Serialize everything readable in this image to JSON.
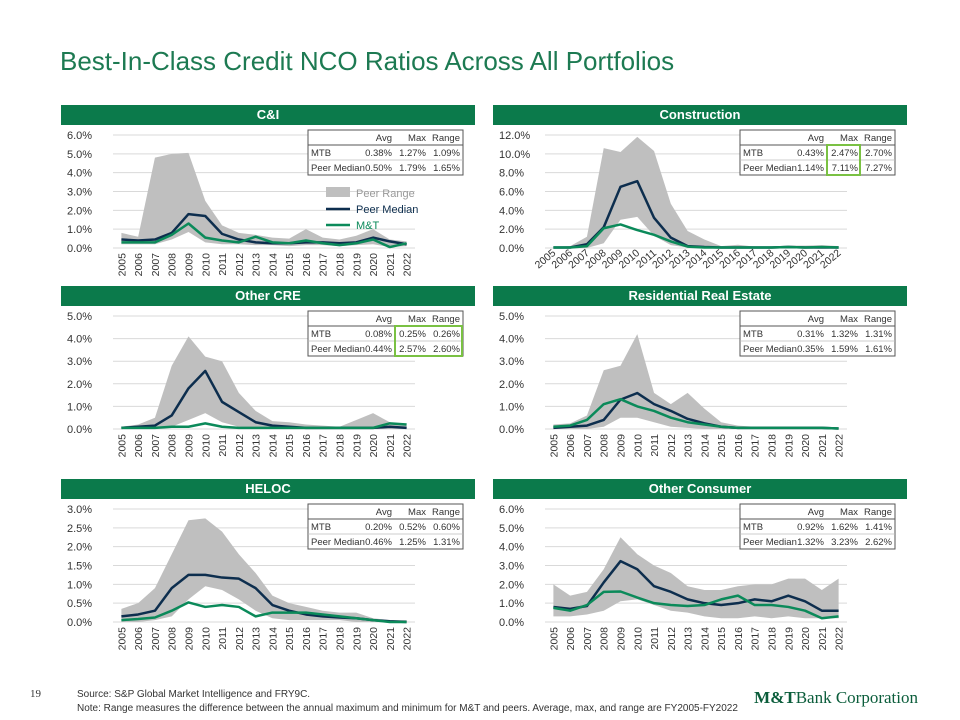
{
  "page": {
    "title": "Best-In-Class Credit NCO Ratios Across All Portfolios",
    "page_number": "19",
    "source": "Source: S&P Global Market Intelligence and FRY9C.",
    "note": "Note: Range measures the difference between the annual maximum and minimum for M&T and peers. Average, max, and range are FY2005-FY2022",
    "logo_mt": "M&T",
    "logo_rest": "Bank Corporation"
  },
  "colors": {
    "header": "#0b7a4b",
    "peer_range": "#bfbfbf",
    "peer_median": "#0d2e4e",
    "mt": "#0b8a5a",
    "highlight": "#7ac143"
  },
  "legend": [
    "Peer Range",
    "Peer Median",
    "M&T"
  ],
  "table_headers": [
    "",
    "Avg",
    "Max",
    "Range"
  ],
  "chart_data": [
    {
      "type": "line",
      "title": "C&I",
      "x": [
        "2005",
        "2006",
        "2007",
        "2008",
        "2009",
        "2010",
        "2011",
        "2012",
        "2013",
        "2014",
        "2015",
        "2016",
        "2017",
        "2018",
        "2019",
        "2020",
        "2021",
        "2022"
      ],
      "yticks": [
        "0.0%",
        "1.0%",
        "2.0%",
        "3.0%",
        "4.0%",
        "5.0%",
        "6.0%"
      ],
      "ylim": [
        0,
        6
      ],
      "rotate_x": false,
      "show_legend": true,
      "range_high": [
        0.8,
        0.6,
        4.8,
        5.0,
        5.05,
        2.5,
        1.2,
        0.8,
        0.7,
        0.55,
        0.5,
        1.0,
        0.55,
        0.45,
        0.65,
        1.0,
        0.45,
        0.35
      ],
      "range_low": [
        0.2,
        0.2,
        0.2,
        0.45,
        0.85,
        0.3,
        0.2,
        0.2,
        0.15,
        0.15,
        0.1,
        0.15,
        0.15,
        0.1,
        0.15,
        0.2,
        0.05,
        0.1
      ],
      "series": [
        {
          "name": "Peer Median",
          "values": [
            0.45,
            0.4,
            0.45,
            0.8,
            1.8,
            1.7,
            0.75,
            0.45,
            0.3,
            0.25,
            0.25,
            0.3,
            0.3,
            0.25,
            0.3,
            0.55,
            0.35,
            0.2
          ]
        },
        {
          "name": "M&T",
          "values": [
            0.3,
            0.3,
            0.3,
            0.7,
            1.3,
            0.55,
            0.4,
            0.3,
            0.6,
            0.3,
            0.25,
            0.4,
            0.25,
            0.15,
            0.25,
            0.45,
            0.05,
            0.25
          ]
        }
      ],
      "table": {
        "rows": [
          {
            "label": "MTB",
            "avg": "0.38%",
            "max": "1.27%",
            "range": "1.09%"
          },
          {
            "label": "Peer Median",
            "avg": "0.50%",
            "max": "1.79%",
            "range": "1.65%"
          }
        ],
        "highlight": null
      }
    },
    {
      "type": "line",
      "title": "Construction",
      "x": [
        "2005",
        "2006",
        "2007",
        "2008",
        "2009",
        "2010",
        "2011",
        "2012",
        "2013",
        "2014",
        "2015",
        "2016",
        "2017",
        "2018",
        "2019",
        "2020",
        "2021",
        "2022"
      ],
      "yticks": [
        "0.0%",
        "2.0%",
        "4.0%",
        "6.0%",
        "8.0%",
        "10.0%",
        "12.0%"
      ],
      "ylim": [
        0,
        12
      ],
      "rotate_x": true,
      "show_legend": false,
      "range_high": [
        0.1,
        0.2,
        1.2,
        10.6,
        10.2,
        11.8,
        10.3,
        4.7,
        1.8,
        0.9,
        0.2,
        0.35,
        0.15,
        0.15,
        0.25,
        0.25,
        0.3,
        0.2
      ],
      "range_low": [
        0,
        0,
        0,
        0.5,
        3.0,
        3.3,
        1.3,
        0.3,
        0.05,
        0,
        0,
        0,
        0,
        0,
        0,
        0,
        0,
        0
      ],
      "series": [
        {
          "name": "Peer Median",
          "values": [
            0.05,
            0.05,
            0.4,
            2.2,
            6.5,
            7.1,
            3.2,
            1.1,
            0.2,
            0.1,
            0.05,
            0.05,
            0.05,
            0.05,
            0.1,
            0.05,
            0.05,
            0.05
          ]
        },
        {
          "name": "M&T",
          "values": [
            0.05,
            0.05,
            0.2,
            2.1,
            2.5,
            1.9,
            1.4,
            0.7,
            0.15,
            0.05,
            0.05,
            0.05,
            0.05,
            0.05,
            0.1,
            0.05,
            0.1,
            0.05
          ]
        }
      ],
      "table": {
        "rows": [
          {
            "label": "MTB",
            "avg": "0.43%",
            "max": "2.47%",
            "range": "2.70%"
          },
          {
            "label": "Peer Median",
            "avg": "1.14%",
            "max": "7.11%",
            "range": "7.27%"
          }
        ],
        "highlight": "max"
      }
    },
    {
      "type": "line",
      "title": "Other CRE",
      "x": [
        "2005",
        "2006",
        "2007",
        "2008",
        "2009",
        "2010",
        "2011",
        "2012",
        "2013",
        "2014",
        "2015",
        "2016",
        "2017",
        "2018",
        "2019",
        "2020",
        "2021",
        "2022"
      ],
      "yticks": [
        "0.0%",
        "1.0%",
        "2.0%",
        "3.0%",
        "4.0%",
        "5.0%"
      ],
      "ylim": [
        0,
        5
      ],
      "rotate_x": false,
      "show_legend": false,
      "range_high": [
        0.1,
        0.2,
        0.5,
        2.8,
        4.1,
        3.2,
        3.0,
        1.6,
        0.8,
        0.35,
        0.3,
        0.2,
        0.15,
        0.1,
        0.4,
        0.7,
        0.3,
        0.15
      ],
      "range_low": [
        0,
        0,
        0,
        0.1,
        0.4,
        0.7,
        0.3,
        0.1,
        0,
        0,
        0,
        0,
        0,
        0,
        0,
        0,
        0,
        0
      ],
      "series": [
        {
          "name": "Peer Median",
          "values": [
            0.05,
            0.1,
            0.15,
            0.6,
            1.8,
            2.57,
            1.2,
            0.75,
            0.3,
            0.15,
            0.1,
            0.05,
            0.05,
            0.05,
            0.05,
            0.05,
            0.1,
            0.05
          ]
        },
        {
          "name": "M&T",
          "values": [
            0.05,
            0.05,
            0.05,
            0.1,
            0.1,
            0.25,
            0.1,
            0.05,
            0.05,
            0.05,
            0.05,
            0.05,
            0.05,
            0.05,
            0.05,
            0.05,
            0.25,
            0.2
          ]
        }
      ],
      "table": {
        "rows": [
          {
            "label": "MTB",
            "avg": "0.08%",
            "max": "0.25%",
            "range": "0.26%"
          },
          {
            "label": "Peer Median",
            "avg": "0.44%",
            "max": "2.57%",
            "range": "2.60%"
          }
        ],
        "highlight": "max_range"
      }
    },
    {
      "type": "line",
      "title": "Residential Real Estate",
      "x": [
        "2005",
        "2006",
        "2007",
        "2008",
        "2009",
        "2010",
        "2011",
        "2012",
        "2013",
        "2014",
        "2015",
        "2016",
        "2017",
        "2018",
        "2019",
        "2020",
        "2021",
        "2022"
      ],
      "yticks": [
        "0.0%",
        "1.0%",
        "2.0%",
        "3.0%",
        "4.0%",
        "5.0%"
      ],
      "ylim": [
        0,
        5
      ],
      "rotate_x": false,
      "show_legend": false,
      "range_high": [
        0.2,
        0.25,
        0.6,
        2.6,
        2.8,
        4.2,
        1.6,
        1.1,
        1.6,
        0.9,
        0.3,
        0.15,
        0.1,
        0.1,
        0.1,
        0.1,
        0.1,
        0.05
      ],
      "range_low": [
        0,
        0,
        0,
        0.1,
        0.5,
        0.5,
        0.3,
        0.1,
        0.05,
        0,
        0,
        0,
        0,
        0,
        0,
        0,
        0,
        0
      ],
      "series": [
        {
          "name": "Peer Median",
          "values": [
            0.05,
            0.1,
            0.15,
            0.4,
            1.3,
            1.59,
            1.1,
            0.8,
            0.45,
            0.25,
            0.1,
            0.05,
            0.05,
            0.05,
            0.05,
            0.05,
            0.05,
            0.02
          ]
        },
        {
          "name": "M&T",
          "values": [
            0.1,
            0.15,
            0.4,
            1.1,
            1.32,
            1.0,
            0.8,
            0.5,
            0.3,
            0.2,
            0.1,
            0.05,
            0.05,
            0.05,
            0.05,
            0.05,
            0.05,
            0.02
          ]
        }
      ],
      "table": {
        "rows": [
          {
            "label": "MTB",
            "avg": "0.31%",
            "max": "1.32%",
            "range": "1.31%"
          },
          {
            "label": "Peer Median",
            "avg": "0.35%",
            "max": "1.59%",
            "range": "1.61%"
          }
        ],
        "highlight": null
      }
    },
    {
      "type": "line",
      "title": "HELOC",
      "x": [
        "2005",
        "2006",
        "2007",
        "2008",
        "2009",
        "2010",
        "2011",
        "2012",
        "2013",
        "2014",
        "2015",
        "2016",
        "2017",
        "2018",
        "2019",
        "2020",
        "2021",
        "2022"
      ],
      "yticks": [
        "0.0%",
        "0.5%",
        "1.0%",
        "1.5%",
        "2.0%",
        "2.5%",
        "3.0%"
      ],
      "ylim": [
        0,
        3
      ],
      "rotate_x": false,
      "show_legend": false,
      "range_high": [
        0.35,
        0.5,
        0.9,
        1.8,
        2.7,
        2.75,
        2.4,
        1.8,
        1.3,
        0.7,
        0.5,
        0.4,
        0.3,
        0.25,
        0.25,
        0.1,
        0.05,
        0.05
      ],
      "range_low": [
        0,
        0,
        0.05,
        0.15,
        0.6,
        0.95,
        0.85,
        0.6,
        0.3,
        0.1,
        0.05,
        0.05,
        0.05,
        0.05,
        0,
        0,
        0,
        0
      ],
      "series": [
        {
          "name": "Peer Median",
          "values": [
            0.15,
            0.2,
            0.3,
            0.9,
            1.25,
            1.25,
            1.18,
            1.15,
            0.9,
            0.45,
            0.3,
            0.2,
            0.15,
            0.12,
            0.1,
            0.05,
            0.02,
            0.0
          ]
        },
        {
          "name": "M&T",
          "values": [
            0.05,
            0.08,
            0.12,
            0.3,
            0.52,
            0.4,
            0.45,
            0.4,
            0.15,
            0.25,
            0.25,
            0.25,
            0.2,
            0.15,
            0.1,
            0.05,
            0.0,
            0.0
          ]
        }
      ],
      "table": {
        "rows": [
          {
            "label": "MTB",
            "avg": "0.20%",
            "max": "0.52%",
            "range": "0.60%"
          },
          {
            "label": "Peer Median",
            "avg": "0.46%",
            "max": "1.25%",
            "range": "1.31%"
          }
        ],
        "highlight": null
      }
    },
    {
      "type": "line",
      "title": "Other Consumer",
      "x": [
        "2005",
        "2006",
        "2007",
        "2008",
        "2009",
        "2010",
        "2011",
        "2012",
        "2013",
        "2014",
        "2015",
        "2016",
        "2017",
        "2018",
        "2019",
        "2020",
        "2021",
        "2022"
      ],
      "yticks": [
        "0.0%",
        "1.0%",
        "2.0%",
        "3.0%",
        "4.0%",
        "5.0%",
        "6.0%"
      ],
      "ylim": [
        0,
        6
      ],
      "rotate_x": false,
      "show_legend": false,
      "range_high": [
        2.0,
        1.4,
        1.6,
        2.8,
        4.5,
        3.6,
        3.0,
        2.6,
        1.9,
        1.7,
        1.7,
        1.9,
        2.0,
        2.0,
        2.3,
        2.3,
        1.7,
        2.3
      ],
      "range_low": [
        0.3,
        0.3,
        0.4,
        0.6,
        1.1,
        1.2,
        0.9,
        0.6,
        0.5,
        0.3,
        0.2,
        0.2,
        0.3,
        0.2,
        0.3,
        0.2,
        0.2,
        0.2
      ],
      "series": [
        {
          "name": "Peer Median",
          "values": [
            0.8,
            0.7,
            0.85,
            2.1,
            3.23,
            2.8,
            1.9,
            1.6,
            1.2,
            1.0,
            0.9,
            1.0,
            1.2,
            1.1,
            1.4,
            1.1,
            0.6,
            0.6
          ]
        },
        {
          "name": "M&T",
          "values": [
            0.75,
            0.6,
            0.9,
            1.6,
            1.62,
            1.3,
            1.0,
            0.9,
            0.85,
            0.9,
            1.2,
            1.4,
            0.9,
            0.9,
            0.8,
            0.6,
            0.2,
            0.3
          ]
        }
      ],
      "table": {
        "rows": [
          {
            "label": "MTB",
            "avg": "0.92%",
            "max": "1.62%",
            "range": "1.41%"
          },
          {
            "label": "Peer Median",
            "avg": "1.32%",
            "max": "3.23%",
            "range": "2.62%"
          }
        ],
        "highlight": null
      }
    }
  ]
}
